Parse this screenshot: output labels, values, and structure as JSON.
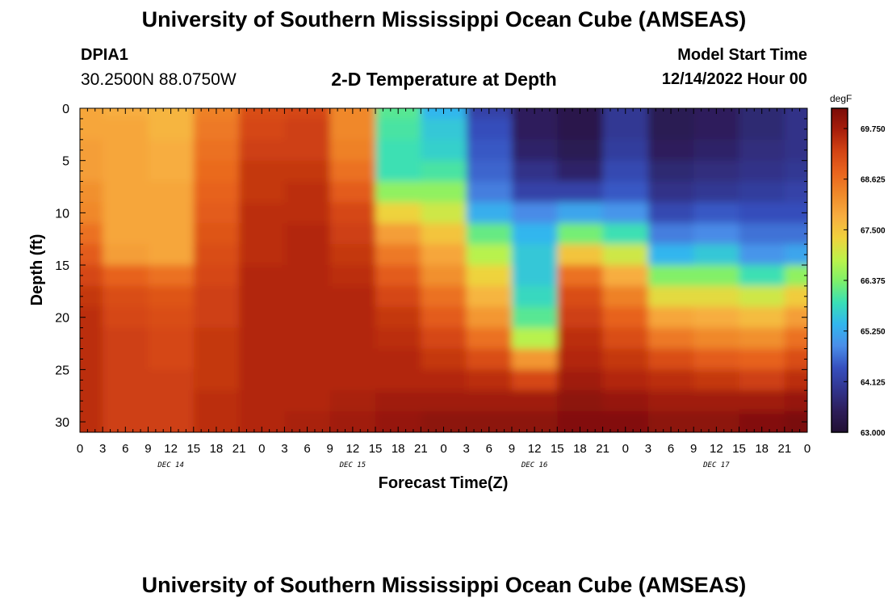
{
  "header": {
    "title": "University of Southern Mississippi Ocean Cube (AMSEAS)",
    "station_id": "DPIA1",
    "station_coords": "30.2500N  88.0750W",
    "plot_title": "2-D Temperature at Depth",
    "model_start_label": "Model Start Time",
    "model_start_value": "12/14/2022 Hour 00"
  },
  "footer": {
    "title": "University of Southern Mississippi Ocean Cube (AMSEAS)"
  },
  "chart_data": {
    "type": "heatmap",
    "title": "2-D Temperature at Depth",
    "xlabel": "Forecast Time(Z)",
    "ylabel": "Depth (ft)",
    "x_ticks": [
      "0",
      "3",
      "6",
      "9",
      "12",
      "15",
      "18",
      "21",
      "0",
      "3",
      "6",
      "9",
      "12",
      "15",
      "18",
      "21",
      "0",
      "3",
      "6",
      "9",
      "12",
      "15",
      "18",
      "21",
      "0",
      "3",
      "6",
      "9",
      "12",
      "15",
      "18",
      "21",
      "0"
    ],
    "x_range_hours": [
      0,
      96
    ],
    "date_labels": [
      {
        "label": "DEC 14",
        "hour": 12
      },
      {
        "label": "DEC 15",
        "hour": 36
      },
      {
        "label": "DEC 16",
        "hour": 60
      },
      {
        "label": "DEC 17",
        "hour": 84
      }
    ],
    "y_ticks": [
      0,
      5,
      10,
      15,
      20,
      25,
      30
    ],
    "ylim": [
      0,
      31
    ],
    "y_inverted": true,
    "colorbar": {
      "unit": "degF",
      "min": 63.0,
      "max": 70.2,
      "tick_labels": [
        "69.750",
        "68.625",
        "67.500",
        "66.375",
        "65.250",
        "64.125",
        "63.000"
      ],
      "tick_values": [
        69.75,
        68.625,
        67.5,
        66.375,
        65.25,
        64.125,
        63.0
      ],
      "colors": [
        "#221033",
        "#2d1e5a",
        "#31358f",
        "#3650bf",
        "#4a8ee9",
        "#32b6ee",
        "#39dfb6",
        "#7df06a",
        "#bdf24a",
        "#f0d23d",
        "#f7ad40",
        "#f08a2a",
        "#e9651e",
        "#d34414",
        "#a71e0b",
        "#7a0c07"
      ]
    },
    "depth_levels": [
      0,
      2,
      4,
      6,
      8,
      10,
      12,
      14,
      16,
      18,
      20,
      22,
      24,
      26,
      28,
      30
    ],
    "hours": [
      0,
      6,
      12,
      18,
      24,
      30,
      36,
      42,
      48,
      54,
      60,
      66,
      72,
      78,
      84,
      90,
      96
    ],
    "values": [
      [
        67.9,
        67.8,
        67.7,
        68.4,
        69.1,
        69.2,
        68.3,
        66.1,
        65.4,
        64.2,
        63.5,
        63.3,
        64.0,
        63.4,
        63.5,
        63.7,
        63.9
      ],
      [
        67.9,
        67.9,
        67.7,
        68.5,
        69.2,
        69.3,
        68.3,
        66.0,
        65.6,
        64.4,
        63.5,
        63.3,
        64.0,
        63.4,
        63.5,
        63.7,
        63.9
      ],
      [
        68.0,
        67.9,
        67.8,
        68.6,
        69.3,
        69.3,
        68.4,
        65.9,
        65.7,
        64.5,
        63.6,
        63.4,
        64.1,
        63.5,
        63.6,
        63.8,
        63.9
      ],
      [
        68.0,
        67.9,
        67.8,
        68.7,
        69.4,
        69.4,
        68.6,
        65.9,
        66.0,
        64.6,
        63.9,
        63.6,
        64.3,
        63.7,
        63.8,
        63.9,
        64.0
      ],
      [
        68.2,
        67.9,
        67.9,
        68.8,
        69.4,
        69.5,
        68.9,
        66.5,
        66.5,
        64.8,
        64.2,
        64.2,
        64.5,
        63.9,
        64.0,
        64.1,
        64.2
      ],
      [
        68.3,
        67.9,
        67.9,
        68.9,
        69.5,
        69.5,
        69.2,
        67.3,
        67.0,
        65.3,
        64.9,
        65.2,
        65.0,
        64.3,
        64.5,
        64.4,
        64.4
      ],
      [
        68.6,
        67.9,
        67.9,
        69.0,
        69.5,
        69.6,
        69.3,
        68.0,
        67.5,
        66.2,
        65.4,
        66.3,
        65.9,
        64.8,
        64.9,
        64.7,
        64.7
      ],
      [
        68.9,
        68.0,
        67.9,
        69.1,
        69.5,
        69.6,
        69.4,
        68.5,
        67.9,
        66.8,
        65.6,
        67.5,
        67.0,
        65.4,
        65.6,
        65.0,
        65.2
      ],
      [
        69.2,
        68.8,
        68.6,
        69.2,
        69.6,
        69.6,
        69.5,
        68.9,
        68.2,
        67.3,
        65.6,
        68.6,
        67.8,
        66.4,
        66.4,
        65.9,
        66.5
      ],
      [
        69.4,
        69.1,
        69.0,
        69.3,
        69.6,
        69.6,
        69.6,
        69.2,
        68.6,
        67.7,
        65.8,
        69.1,
        68.4,
        67.2,
        67.2,
        67.0,
        67.4
      ],
      [
        69.5,
        69.2,
        69.1,
        69.3,
        69.6,
        69.6,
        69.6,
        69.4,
        68.9,
        68.1,
        66.1,
        69.3,
        68.8,
        67.9,
        67.8,
        67.6,
        68.0
      ],
      [
        69.5,
        69.3,
        69.2,
        69.4,
        69.6,
        69.6,
        69.6,
        69.5,
        69.2,
        68.6,
        66.8,
        69.5,
        69.1,
        68.5,
        68.3,
        68.2,
        68.6
      ],
      [
        69.5,
        69.3,
        69.2,
        69.4,
        69.6,
        69.6,
        69.6,
        69.6,
        69.4,
        69.1,
        68.1,
        69.6,
        69.4,
        69.1,
        68.9,
        68.8,
        69.1
      ],
      [
        69.5,
        69.3,
        69.3,
        69.4,
        69.6,
        69.6,
        69.6,
        69.6,
        69.6,
        69.5,
        69.2,
        69.8,
        69.6,
        69.5,
        69.4,
        69.3,
        69.5
      ],
      [
        69.5,
        69.3,
        69.3,
        69.5,
        69.6,
        69.6,
        69.7,
        69.8,
        69.8,
        69.8,
        69.8,
        70.0,
        69.9,
        69.8,
        69.8,
        69.8,
        69.9
      ],
      [
        69.5,
        69.3,
        69.3,
        69.5,
        69.6,
        69.7,
        69.8,
        69.9,
        70.0,
        70.0,
        70.0,
        70.1,
        70.1,
        70.0,
        70.0,
        70.1,
        70.2
      ]
    ]
  }
}
